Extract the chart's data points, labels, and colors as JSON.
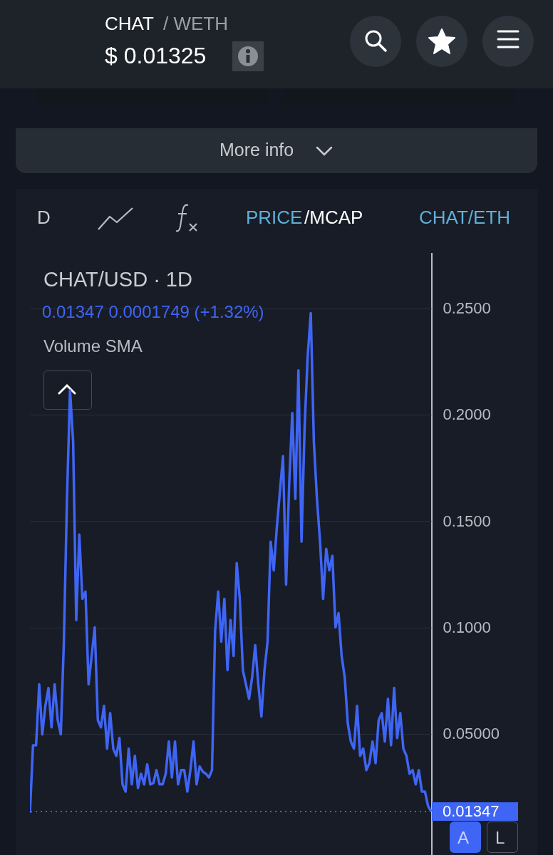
{
  "chart_data": {
    "type": "line",
    "title": "CHAT/USD · 1D",
    "annotations": [
      "CHAT",
      "/ WETH",
      "$ 0.01325",
      "More info",
      "D",
      "PRICE",
      "/MCAP",
      "CHAT/ETH",
      "0.01347  0.0001749 (+1.32%)",
      "Volume SMA",
      "A",
      "L"
    ],
    "categories": [
      null,
      null,
      null,
      null,
      null,
      null,
      null,
      null,
      null,
      null,
      null,
      null,
      null,
      null,
      null,
      null,
      null,
      null,
      null,
      null,
      null,
      null,
      null,
      null,
      null,
      null,
      null,
      null,
      null,
      null,
      null,
      null,
      null,
      null,
      null,
      null,
      null,
      null,
      null,
      null,
      null,
      null,
      null,
      null,
      null,
      null,
      null,
      null,
      null,
      null,
      null,
      null,
      null,
      null,
      null,
      null,
      null,
      null,
      null,
      null,
      null,
      null,
      null,
      null,
      null,
      null,
      null,
      null,
      null,
      null,
      null,
      null,
      null,
      null,
      null,
      null,
      null,
      null,
      null,
      null,
      null,
      null,
      null,
      null,
      null,
      null,
      null,
      null,
      null,
      null,
      null,
      null,
      null,
      null,
      null,
      null,
      null,
      null,
      null,
      null,
      null,
      null,
      null,
      null,
      null,
      null,
      null,
      null,
      null,
      null,
      null,
      null,
      null,
      null,
      null,
      null,
      null,
      null,
      null,
      null,
      null,
      null,
      null,
      null,
      null,
      null,
      null,
      null,
      null,
      null,
      null
    ],
    "series": [
      {
        "color": "#3f65f5",
        "values": [
          0.0128,
          0.0446,
          0.0446,
          0.0732,
          0.0497,
          0.0631,
          0.0715,
          0.053,
          0.0732,
          0.0564,
          0.0497,
          0.0933,
          0.1604,
          0.2114,
          0.1872,
          0.1034,
          0.1436,
          0.1134,
          0.1168,
          0.0732,
          0.0866,
          0.1,
          0.0564,
          0.053,
          0.0631,
          0.043,
          0.0597,
          0.043,
          0.0396,
          0.048,
          0.0262,
          0.0228,
          0.043,
          0.0262,
          0.0396,
          0.0245,
          0.0312,
          0.0262,
          0.0356,
          0.0262,
          0.0268,
          0.0329,
          0.0262,
          0.0262,
          0.0312,
          0.0463,
          0.0295,
          0.0463,
          0.0262,
          0.0329,
          0.0329,
          0.0228,
          0.0329,
          0.0463,
          0.0262,
          0.0346,
          0.0322,
          0.0312,
          0.0295,
          0.0329,
          0.0983,
          0.1168,
          0.0933,
          0.1134,
          0.0799,
          0.1034,
          0.0866,
          0.1302,
          0.1134,
          0.0799,
          0.0732,
          0.0664,
          0.0765,
          0.0916,
          0.0732,
          0.0581,
          0.0799,
          0.0933,
          0.1403,
          0.1268,
          0.147,
          0.1638,
          0.1805,
          0.1201,
          0.1671,
          0.2007,
          0.1604,
          0.2208,
          0.1403,
          0.194,
          0.2275,
          0.2477,
          0.1872,
          0.1604,
          0.1403,
          0.1134,
          0.1369,
          0.1268,
          0.1336,
          0.1,
          0.1067,
          0.0866,
          0.0765,
          0.0547,
          0.0463,
          0.043,
          0.0631,
          0.0396,
          0.043,
          0.0329,
          0.0362,
          0.0463,
          0.0362,
          0.0564,
          0.0597,
          0.0463,
          0.0664,
          0.0446,
          0.0715,
          0.048,
          0.0597,
          0.043,
          0.0396,
          0.0312,
          0.0329,
          0.0262,
          0.0329,
          0.0228,
          0.0228,
          0.0161,
          0.0135
        ]
      }
    ],
    "ylim": [
      -0.007,
      0.276
    ],
    "yticks": [
      {
        "value": 0.05,
        "label": "0.05000"
      },
      {
        "value": 0.1,
        "label": "0.1000"
      },
      {
        "value": 0.15,
        "label": "0.1500"
      },
      {
        "value": 0.2,
        "label": "0.2000"
      },
      {
        "value": 0.25,
        "label": "0.2500"
      }
    ],
    "ref_lines": [
      {
        "axis": "y",
        "value": 0.01347,
        "label": "0.01347",
        "color": "#3f65f5",
        "line_style": "dotted"
      }
    ],
    "grid": "y",
    "tick_labels": "y"
  }
}
